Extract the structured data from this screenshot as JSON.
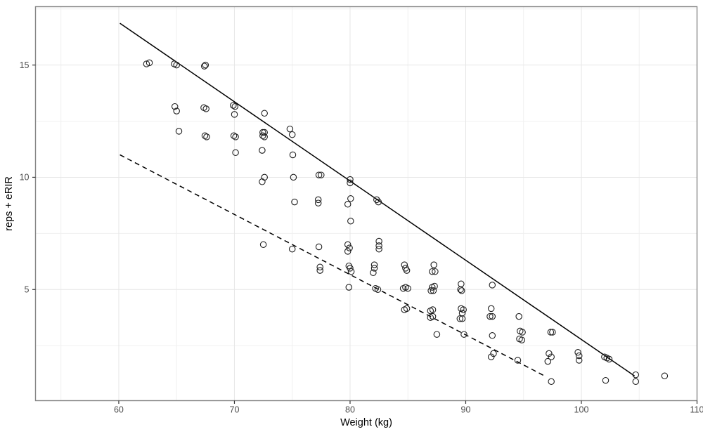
{
  "chart_data": {
    "type": "scatter",
    "title": "",
    "xlabel": "Weight (kg)",
    "ylabel": "reps + eRIR",
    "xlim": [
      52.8,
      110.0
    ],
    "ylim": [
      0.05,
      17.6
    ],
    "x_ticks": [
      60,
      70,
      80,
      90,
      100,
      110
    ],
    "x_minor_ticks": [
      55,
      65,
      75,
      85,
      95,
      105
    ],
    "y_ticks": [
      5,
      10,
      15
    ],
    "y_minor_ticks": [
      2.5,
      7.5,
      12.5,
      17.5
    ],
    "grid": true,
    "legend_position": "none",
    "style": {
      "point_color": "#1f1f1f",
      "line_color": "#000000",
      "grid_major_color": "#e6e6e6",
      "grid_minor_color": "#f0f0f0",
      "panel_border_color": "#878787",
      "tick_color": "#333333",
      "tick_label_color": "#4d4d4d",
      "axis_title_color": "#000000",
      "background": "#ffffff"
    },
    "series": [
      {
        "name": "observations",
        "marker": "open-circle",
        "points": [
          [
            62.4,
            15.05
          ],
          [
            62.65,
            15.1
          ],
          [
            64.8,
            15.05
          ],
          [
            65.0,
            15.0
          ],
          [
            67.4,
            14.95
          ],
          [
            67.5,
            15.0
          ],
          [
            64.85,
            13.15
          ],
          [
            65.0,
            12.95
          ],
          [
            65.2,
            12.05
          ],
          [
            67.35,
            13.1
          ],
          [
            67.55,
            13.05
          ],
          [
            69.9,
            13.2
          ],
          [
            70.05,
            13.15
          ],
          [
            70.0,
            12.8
          ],
          [
            72.6,
            12.85
          ],
          [
            74.8,
            12.15
          ],
          [
            75.0,
            11.9
          ],
          [
            67.45,
            11.85
          ],
          [
            67.6,
            11.8
          ],
          [
            69.95,
            11.85
          ],
          [
            70.1,
            11.8
          ],
          [
            72.45,
            12.0
          ],
          [
            72.6,
            12.0
          ],
          [
            72.45,
            11.85
          ],
          [
            72.6,
            11.8
          ],
          [
            70.1,
            11.1
          ],
          [
            72.4,
            11.2
          ],
          [
            75.05,
            11.0
          ],
          [
            72.6,
            10.0
          ],
          [
            72.4,
            9.8
          ],
          [
            75.1,
            10.0
          ],
          [
            77.3,
            10.1
          ],
          [
            77.5,
            10.1
          ],
          [
            80.0,
            9.9
          ],
          [
            80.0,
            9.75
          ],
          [
            75.2,
            8.9
          ],
          [
            77.25,
            9.0
          ],
          [
            77.25,
            8.85
          ],
          [
            80.05,
            9.05
          ],
          [
            79.8,
            8.8
          ],
          [
            82.3,
            9.0
          ],
          [
            82.45,
            8.9
          ],
          [
            80.05,
            8.05
          ],
          [
            72.5,
            7.0
          ],
          [
            75.0,
            6.8
          ],
          [
            77.3,
            6.9
          ],
          [
            79.8,
            7.0
          ],
          [
            79.95,
            6.85
          ],
          [
            79.8,
            6.7
          ],
          [
            82.5,
            7.15
          ],
          [
            82.5,
            6.95
          ],
          [
            82.5,
            6.8
          ],
          [
            77.4,
            6.0
          ],
          [
            77.4,
            5.85
          ],
          [
            79.9,
            6.05
          ],
          [
            80.0,
            5.95
          ],
          [
            80.1,
            5.8
          ],
          [
            82.1,
            6.1
          ],
          [
            82.1,
            5.95
          ],
          [
            82.0,
            5.75
          ],
          [
            84.7,
            6.1
          ],
          [
            84.8,
            5.95
          ],
          [
            84.9,
            5.85
          ],
          [
            87.25,
            6.1
          ],
          [
            87.1,
            5.8
          ],
          [
            87.35,
            5.8
          ],
          [
            79.9,
            5.1
          ],
          [
            82.2,
            5.05
          ],
          [
            82.4,
            5.0
          ],
          [
            84.6,
            5.05
          ],
          [
            84.8,
            5.1
          ],
          [
            85.0,
            5.05
          ],
          [
            87.1,
            5.1
          ],
          [
            87.3,
            5.15
          ],
          [
            87.0,
            4.95
          ],
          [
            87.2,
            4.95
          ],
          [
            89.6,
            5.25
          ],
          [
            89.55,
            5.0
          ],
          [
            89.65,
            4.95
          ],
          [
            92.3,
            5.2
          ],
          [
            84.7,
            4.1
          ],
          [
            84.9,
            4.15
          ],
          [
            86.95,
            4.05
          ],
          [
            87.15,
            4.1
          ],
          [
            86.95,
            3.75
          ],
          [
            87.15,
            3.8
          ],
          [
            89.6,
            4.15
          ],
          [
            89.8,
            4.1
          ],
          [
            89.7,
            3.95
          ],
          [
            89.5,
            3.7
          ],
          [
            89.7,
            3.7
          ],
          [
            92.2,
            4.15
          ],
          [
            92.1,
            3.8
          ],
          [
            92.3,
            3.8
          ],
          [
            94.6,
            3.8
          ],
          [
            87.5,
            3.0
          ],
          [
            89.85,
            3.0
          ],
          [
            92.3,
            2.95
          ],
          [
            94.7,
            3.15
          ],
          [
            94.9,
            3.1
          ],
          [
            94.65,
            2.8
          ],
          [
            94.85,
            2.75
          ],
          [
            97.35,
            3.1
          ],
          [
            97.5,
            3.1
          ],
          [
            92.4,
            2.15
          ],
          [
            92.2,
            2.0
          ],
          [
            94.5,
            1.85
          ],
          [
            97.2,
            2.15
          ],
          [
            97.4,
            2.0
          ],
          [
            97.1,
            1.8
          ],
          [
            99.7,
            2.2
          ],
          [
            99.8,
            2.05
          ],
          [
            99.8,
            1.85
          ],
          [
            102.0,
            2.0
          ],
          [
            102.2,
            1.95
          ],
          [
            102.4,
            1.9
          ],
          [
            102.1,
            0.95
          ],
          [
            104.7,
            1.2
          ],
          [
            104.7,
            0.9
          ],
          [
            107.2,
            1.15
          ],
          [
            97.4,
            0.9
          ]
        ]
      },
      {
        "name": "upper-trend-line",
        "type": "line",
        "line_style": "solid",
        "from": [
          60.1,
          16.86
        ],
        "to": [
          104.6,
          1.15
        ]
      },
      {
        "name": "lower-trend-line",
        "type": "line",
        "line_style": "dashed",
        "from": [
          60.1,
          11.0
        ],
        "to": [
          96.9,
          1.13
        ]
      }
    ]
  }
}
